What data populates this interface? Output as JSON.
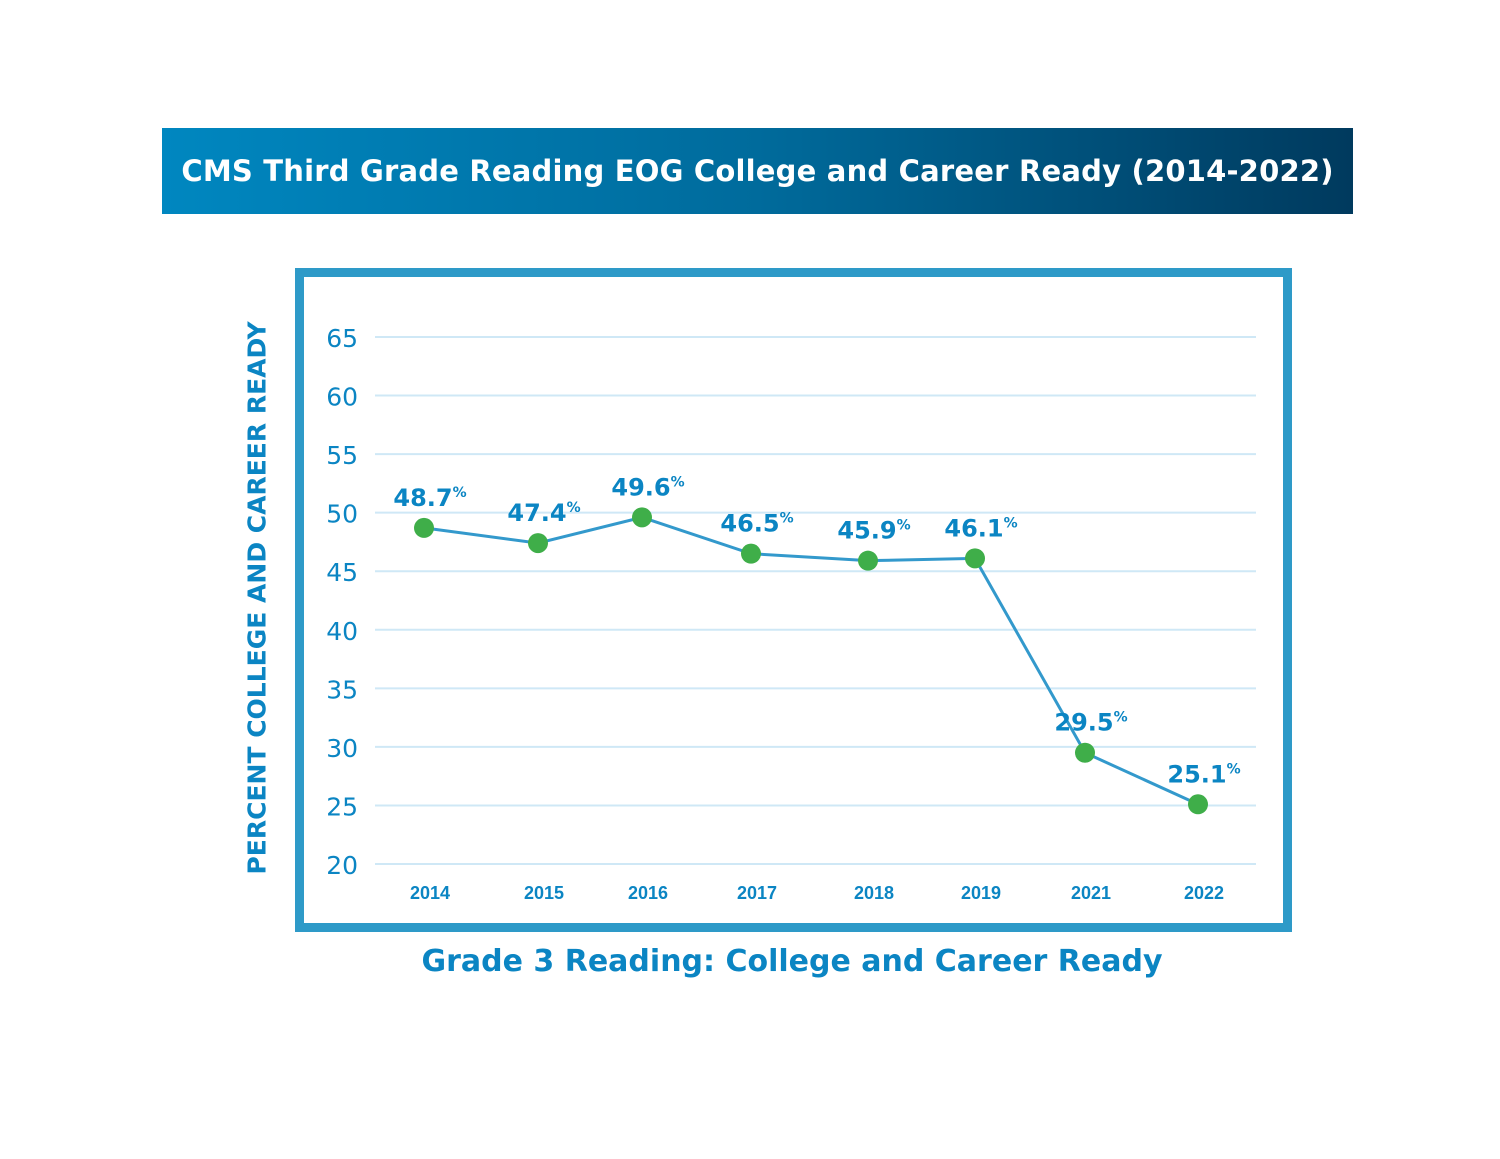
{
  "header": {
    "title": "CMS Third Grade Reading EOG College and Career Ready (2014-2022)"
  },
  "chart_data": {
    "type": "line",
    "title": "CMS Third Grade Reading EOG College and Career Ready (2014-2022)",
    "xlabel": "Grade 3 Reading: College and Career Ready",
    "ylabel": "PERCENT COLLEGE AND CAREER READY",
    "categories": [
      "2014",
      "2015",
      "2016",
      "2017",
      "2018",
      "2019",
      "2021",
      "2022"
    ],
    "values": [
      48.7,
      47.4,
      49.6,
      46.5,
      45.9,
      46.1,
      29.5,
      25.1
    ],
    "data_labels": [
      "48.7",
      "47.4",
      "49.6",
      "46.5",
      "45.9",
      "46.1",
      "29.5",
      "25.1"
    ],
    "label_suffix": "%",
    "ylim": [
      20,
      65
    ],
    "yticks": [
      20,
      25,
      30,
      35,
      40,
      45,
      50,
      55,
      60,
      65
    ],
    "grid": true,
    "legend": "none",
    "colors": {
      "line": "#3399cc",
      "marker": "#3fae49",
      "text": "#0b85c3",
      "grid": "#cfe8f6",
      "frame": "#2e9ac8"
    }
  }
}
